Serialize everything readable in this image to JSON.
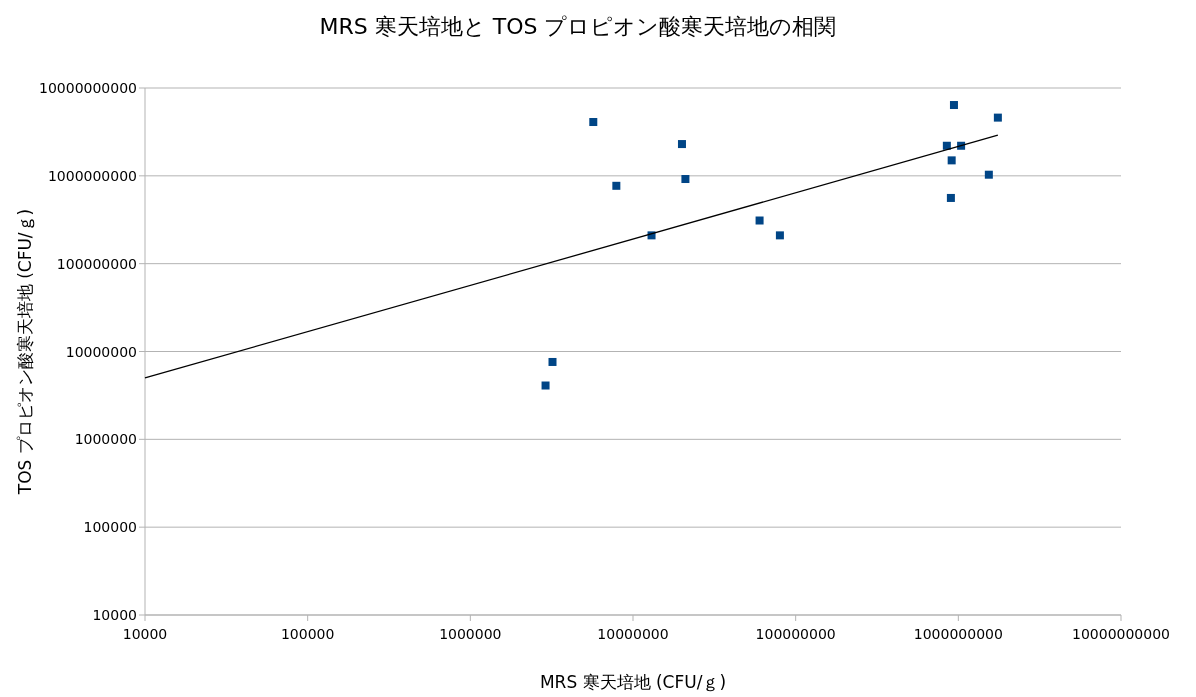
{
  "chart_data": {
    "type": "scatter",
    "title": "MRS 寒天培地と TOS プロピオン酸寒天培地の相関",
    "xlabel": "MRS 寒天培地 (CFU/ｇ)",
    "ylabel": "TOS プロピオン酸寒天培地 (CFU/ｇ)",
    "log": "xy",
    "xlim": [
      10000,
      10000000000
    ],
    "ylim": [
      10000,
      10000000000
    ],
    "xticks": [
      10000,
      100000,
      1000000,
      10000000,
      100000000,
      1000000000,
      10000000000
    ],
    "yticks": [
      10000,
      100000,
      1000000,
      10000000,
      100000000,
      1000000000,
      10000000000
    ],
    "grid": "y",
    "series": [
      {
        "marker": "square",
        "color": "#004586",
        "x": [
          2900000,
          3200000,
          5700000,
          7900000,
          13000000,
          20000000,
          21000000,
          60000000,
          80000000,
          850000000,
          940000000,
          910000000,
          900000000,
          1040000000,
          1540000000,
          1750000000
        ],
        "values": [
          4100000,
          7600000,
          4100000000,
          770000000,
          210000000,
          2300000000,
          920000000,
          310000000,
          210000000,
          2200000000,
          6400000000,
          1500000000,
          560000000,
          2200000000,
          1030000000,
          4600000000
        ]
      },
      {
        "type": "line",
        "marker": "none",
        "color": "#000000",
        "line_style": "solid",
        "x": [
          10000,
          1750000000
        ],
        "values": [
          5000000,
          2900000000
        ]
      }
    ]
  }
}
